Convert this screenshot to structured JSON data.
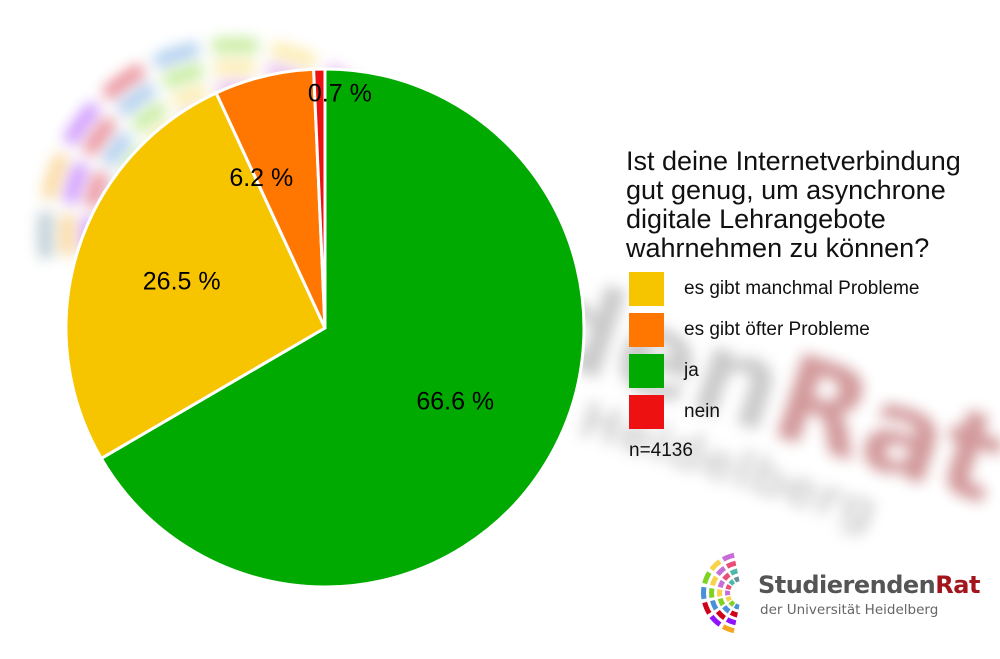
{
  "chart_data": {
    "type": "pie",
    "title": "Ist deine Internetverbindung gut genug, um asynchrone digitale Lehrangebote wahrnehmen zu können?",
    "slices": [
      {
        "label": "ja",
        "value": 66.6,
        "display": "66.6 %",
        "color": "#00aa00"
      },
      {
        "label": "es gibt manchmal Probleme",
        "value": 26.5,
        "display": "26.5 %",
        "color": "#f7c500"
      },
      {
        "label": "es gibt öfter Probleme",
        "value": 6.2,
        "display": "6.2 %",
        "color": "#ff7700"
      },
      {
        "label": "nein",
        "value": 0.7,
        "display": "0.7 %",
        "color": "#ee1111"
      }
    ],
    "legend": {
      "position": "right",
      "entries": [
        {
          "label": "es gibt manchmal Probleme",
          "color": "#f7c500"
        },
        {
          "label": "es gibt öfter Probleme",
          "color": "#ff7700"
        },
        {
          "label": "ja",
          "color": "#00aa00"
        },
        {
          "label": "nein",
          "color": "#ee1111"
        }
      ]
    },
    "annotation": "n=4136"
  },
  "logo": {
    "name_part1": "Studierenden",
    "name_part2": "Rat",
    "subtitle": "der Universität Heidelberg",
    "accent_color": "#a3151c"
  },
  "watermark": {
    "word_part1": "den",
    "word_part2": "Rat",
    "sub": "Heidelberg"
  }
}
